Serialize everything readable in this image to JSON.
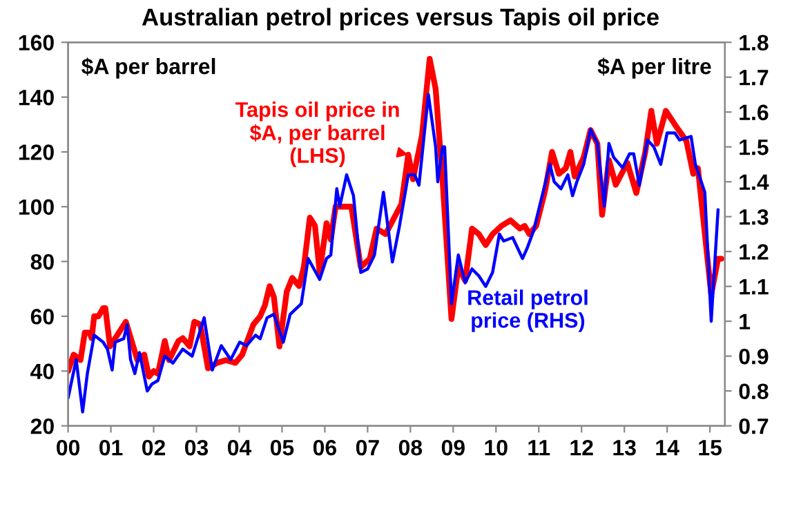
{
  "chart_data": {
    "type": "line",
    "title": "Australian petrol prices versus Tapis oil price",
    "ylabel": "$A per barrel",
    "y2label": "$A per litre",
    "xlim": [
      2000,
      2015.35
    ],
    "xticks": [
      {
        "value": 2000,
        "label": "00"
      },
      {
        "value": 2001,
        "label": "01"
      },
      {
        "value": 2002,
        "label": "02"
      },
      {
        "value": 2003,
        "label": "03"
      },
      {
        "value": 2004,
        "label": "04"
      },
      {
        "value": 2005,
        "label": "05"
      },
      {
        "value": 2006,
        "label": "06"
      },
      {
        "value": 2007,
        "label": "07"
      },
      {
        "value": 2008,
        "label": "08"
      },
      {
        "value": 2009,
        "label": "09"
      },
      {
        "value": 2010,
        "label": "10"
      },
      {
        "value": 2011,
        "label": "11"
      },
      {
        "value": 2012,
        "label": "12"
      },
      {
        "value": 2013,
        "label": "13"
      },
      {
        "value": 2014,
        "label": "14"
      },
      {
        "value": 2015,
        "label": "15"
      }
    ],
    "ylim": [
      20,
      160
    ],
    "yticks": [
      20,
      40,
      60,
      80,
      100,
      120,
      140,
      160
    ],
    "y2lim": [
      0.7,
      1.8
    ],
    "y2ticks": [
      0.7,
      0.8,
      0.9,
      1,
      1.1,
      1.2,
      1.3,
      1.4,
      1.5,
      1.6,
      1.7,
      1.8
    ],
    "grid": false,
    "legend": false,
    "marker": "none",
    "line_style": "solid",
    "series": [
      {
        "name": "Tapis oil price in\n$A, per barrel\n(LHS)",
        "color": "#ff0000",
        "axis": "y",
        "x": [
          2000.0,
          2000.13,
          2000.29,
          2000.39,
          2000.5,
          2000.55,
          2000.61,
          2000.71,
          2000.82,
          2000.87,
          2000.98,
          2001.35,
          2001.62,
          2001.78,
          2001.89,
          2002.0,
          2002.1,
          2002.26,
          2002.36,
          2002.58,
          2002.68,
          2002.84,
          2002.95,
          2003.09,
          2003.27,
          2003.48,
          2003.69,
          2003.91,
          2004.07,
          2004.33,
          2004.49,
          2004.6,
          2004.71,
          2004.81,
          2004.94,
          2005.11,
          2005.24,
          2005.4,
          2005.51,
          2005.65,
          2005.77,
          2005.88,
          2006.04,
          2006.14,
          2006.25,
          2006.46,
          2006.62,
          2006.84,
          2007.05,
          2007.21,
          2007.42,
          2007.79,
          2007.95,
          2008.06,
          2008.27,
          2008.45,
          2008.59,
          2008.75,
          2008.96,
          2009.12,
          2009.28,
          2009.44,
          2009.6,
          2009.76,
          2009.92,
          2010.13,
          2010.34,
          2010.56,
          2010.67,
          2010.78,
          2010.94,
          2011.15,
          2011.31,
          2011.47,
          2011.63,
          2011.74,
          2011.84,
          2012.05,
          2012.21,
          2012.37,
          2012.48,
          2012.64,
          2012.8,
          2013.07,
          2013.28,
          2013.49,
          2013.63,
          2013.76,
          2013.97,
          2014.18,
          2014.45,
          2014.61,
          2014.72,
          2015.03,
          2015.19,
          2015.27
        ],
        "values": [
          40,
          46,
          44,
          54,
          54,
          52,
          60,
          60,
          63,
          63,
          49,
          58,
          44,
          46,
          38,
          40,
          39,
          51,
          44,
          51,
          52,
          49,
          58,
          57,
          41,
          43,
          44,
          43,
          46,
          57,
          60,
          64,
          71,
          67,
          49,
          69,
          74,
          71,
          78,
          96,
          93,
          76,
          94,
          88,
          100,
          100,
          100,
          78,
          81,
          92,
          90,
          101,
          119,
          110,
          126,
          154,
          143,
          110,
          59,
          78,
          73,
          92,
          90,
          86,
          90,
          93,
          95,
          92,
          93,
          90,
          93,
          106,
          120,
          112,
          114,
          120,
          111,
          118,
          128,
          123,
          97,
          117,
          108,
          116,
          105,
          120,
          135,
          123,
          135,
          130,
          124,
          112,
          114,
          68,
          81,
          81
        ]
      },
      {
        "name": "Retail petrol\nprice (RHS)",
        "color": "#0000ff",
        "axis": "y2",
        "x": [
          2000.0,
          2000.19,
          2000.34,
          2000.45,
          2000.61,
          2000.82,
          2000.92,
          2001.03,
          2001.1,
          2001.3,
          2001.38,
          2001.46,
          2001.56,
          2001.67,
          2001.85,
          2001.96,
          2002.1,
          2002.26,
          2002.45,
          2002.68,
          2002.9,
          2003.18,
          2003.37,
          2003.58,
          2003.8,
          2004.01,
          2004.17,
          2004.38,
          2004.49,
          2004.65,
          2004.81,
          2005.03,
          2005.19,
          2005.45,
          2005.61,
          2005.88,
          2006.04,
          2006.14,
          2006.28,
          2006.35,
          2006.51,
          2006.67,
          2006.84,
          2007.0,
          2007.16,
          2007.37,
          2007.58,
          2007.74,
          2007.95,
          2008.1,
          2008.2,
          2008.42,
          2008.59,
          2008.64,
          2008.75,
          2008.8,
          2008.96,
          2009.12,
          2009.28,
          2009.44,
          2009.6,
          2009.76,
          2009.92,
          2010.08,
          2010.18,
          2010.39,
          2010.62,
          2010.73,
          2010.88,
          2011.04,
          2011.26,
          2011.36,
          2011.52,
          2011.68,
          2011.79,
          2011.89,
          2012.05,
          2012.21,
          2012.37,
          2012.53,
          2012.64,
          2012.75,
          2012.96,
          2013.12,
          2013.22,
          2013.35,
          2013.54,
          2013.69,
          2013.85,
          2014.0,
          2014.18,
          2014.29,
          2014.56,
          2014.66,
          2014.88,
          2015.03,
          2015.19
        ],
        "values": [
          0.78,
          0.89,
          0.74,
          0.85,
          0.96,
          0.94,
          0.92,
          0.86,
          0.94,
          0.95,
          0.99,
          0.89,
          0.85,
          0.91,
          0.8,
          0.82,
          0.83,
          0.9,
          0.88,
          0.92,
          0.9,
          1.01,
          0.86,
          0.93,
          0.89,
          0.94,
          0.93,
          0.96,
          0.95,
          1.01,
          1.02,
          0.94,
          1.02,
          1.05,
          1.18,
          1.12,
          1.18,
          1.19,
          1.38,
          1.33,
          1.42,
          1.36,
          1.14,
          1.15,
          1.19,
          1.37,
          1.17,
          1.27,
          1.42,
          1.42,
          1.39,
          1.65,
          1.5,
          1.4,
          1.5,
          1.5,
          1.05,
          1.19,
          1.11,
          1.15,
          1.13,
          1.1,
          1.14,
          1.25,
          1.23,
          1.24,
          1.18,
          1.21,
          1.26,
          1.34,
          1.45,
          1.4,
          1.38,
          1.42,
          1.36,
          1.4,
          1.45,
          1.55,
          1.51,
          1.33,
          1.51,
          1.47,
          1.44,
          1.48,
          1.48,
          1.39,
          1.52,
          1.5,
          1.45,
          1.54,
          1.54,
          1.52,
          1.53,
          1.45,
          1.37,
          1.0,
          1.32
        ]
      }
    ]
  }
}
